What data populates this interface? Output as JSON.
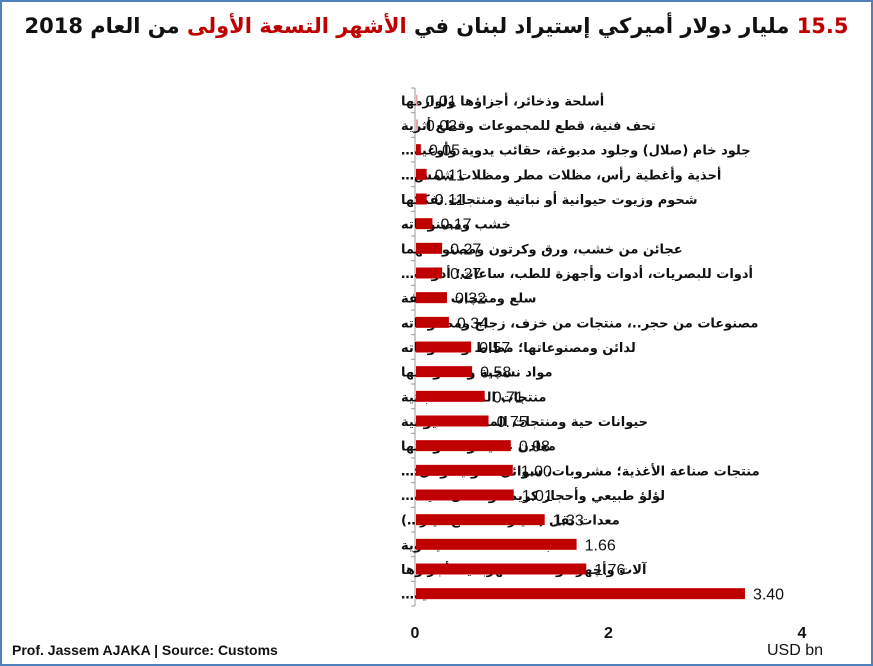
{
  "title": {
    "number": "15.5",
    "part1": " مليار دولار أميركي إستيراد لبنان في ",
    "highlight": "الأشهر التسعة الأولى",
    "part2": " من العام 2018"
  },
  "footer": "Prof. Jassem AJAKA | Source: Customs",
  "unit_label": "USD bn",
  "colors": {
    "bar": "#c00000",
    "bar_light": "#e8a3a3",
    "axis": "#999999",
    "border": "#4f81bd"
  },
  "chart_data": {
    "type": "bar",
    "orientation": "horizontal",
    "xlim": [
      0,
      4
    ],
    "xticks": [
      0,
      2,
      4
    ],
    "xlabel": "USD bn",
    "categories": [
      "أسلحة وذخائر، أجزاؤها ولوازمها",
      "تحف فنية، قطع للمجموعات وقطع أثرية",
      "جلود خام (صلال) وجلود مدبوغة، حقائب يدوية وأوعية…",
      "أحذية وأغطية رأس، مظلات مطر ومظلات شمس…",
      "شحوم وزيوت حيوانية أو نباتية ومنتجات تفككها",
      "خشب ومصنوعاته",
      "عجائن من خشب، ورق وكرتون ومصنوعاتهما",
      "أدوات للبصريات، أدوات وأجهزة للطب، ساعات؛ أدوات…",
      "سلع ومنتجات مختلفة",
      "مصنوعات من حجر..، منتجات من خزف، زجاج ومصنوعاته",
      "لدائن ومصنوعاتها؛ مطاط ومصنوعاته",
      "مواد نسجية ومصنوعاتها",
      "منتجات المملكة النباتية",
      "حيوانات حية ومنتجات المملكة الحيوانية",
      "معادن عادية ومصنوعاتها",
      "منتجات صناعة الأغذية؛ مشروبات، سوائل كحولية وخل؛…",
      "لؤلؤ طبيعي وأحجار كريمة ومعادن ثمينة…",
      "معدات نقل (سيارات، قطع غيار…)",
      "منتجات الصناعات الكيماوية",
      "آلات وأجهزة ومعدات كهربائية، أجزاؤها",
      "نفط، مشتقات نفطية…"
    ],
    "values": [
      0.01,
      0.02,
      0.05,
      0.11,
      0.11,
      0.17,
      0.27,
      0.27,
      0.32,
      0.34,
      0.57,
      0.58,
      0.71,
      0.75,
      0.98,
      1.0,
      1.01,
      1.33,
      1.66,
      1.76,
      3.4
    ],
    "value_labels": [
      "0.01",
      "0.02",
      "0.05",
      "0.11",
      "0.11",
      "0.17",
      "0.27",
      "0.27",
      "0.32",
      "0.34",
      "0.57",
      "0.58",
      "0.71",
      "0.75",
      "0.98",
      "1.00",
      "1.01",
      "1.33",
      "1.66",
      "1.76",
      "3.40"
    ],
    "grid": false,
    "legend": "none"
  }
}
